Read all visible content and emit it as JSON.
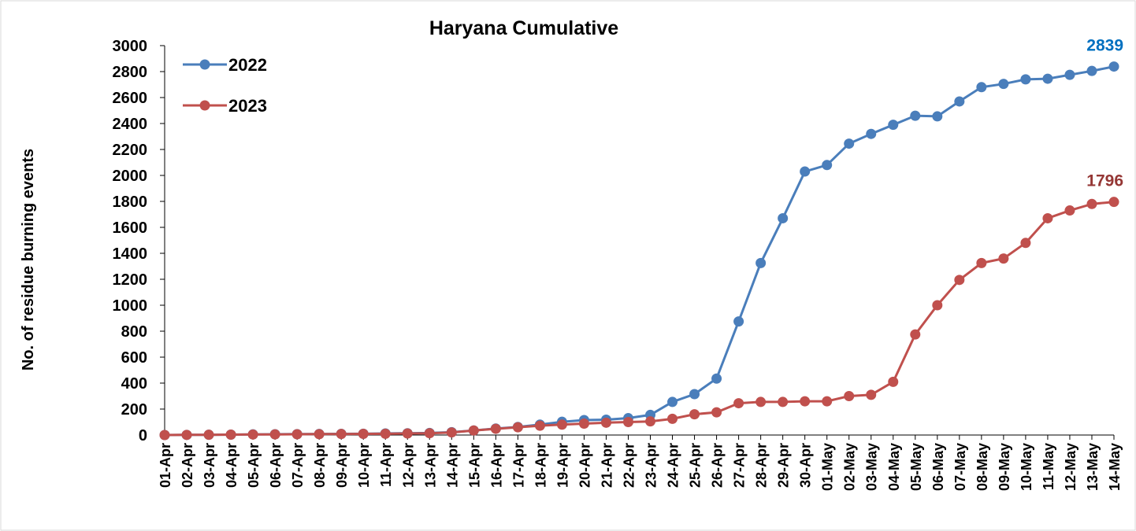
{
  "chart_data": {
    "type": "line",
    "title": "Haryana Cumulative",
    "y_label": "No. of residue burning events",
    "categories": [
      "01-Apr",
      "02-Apr",
      "03-Apr",
      "04-Apr",
      "05-Apr",
      "06-Apr",
      "07-Apr",
      "08-Apr",
      "09-Apr",
      "10-Apr",
      "11-Apr",
      "12-Apr",
      "13-Apr",
      "14-Apr",
      "15-Apr",
      "16-Apr",
      "17-Apr",
      "18-Apr",
      "19-Apr",
      "20-Apr",
      "21-Apr",
      "22-Apr",
      "23-Apr",
      "24-Apr",
      "25-Apr",
      "26-Apr",
      "27-Apr",
      "28-Apr",
      "29-Apr",
      "30-Apr",
      "01-May",
      "02-May",
      "03-May",
      "04-May",
      "05-May",
      "06-May",
      "07-May",
      "08-May",
      "09-May",
      "10-May",
      "11-May",
      "12-May",
      "13-May",
      "14-May"
    ],
    "series": [
      {
        "name": "2022",
        "color": "#4a7ebb",
        "label_color": "#0070c0",
        "values": [
          0,
          1,
          2,
          3,
          5,
          6,
          7,
          8,
          9,
          10,
          12,
          14,
          16,
          22,
          35,
          50,
          62,
          80,
          102,
          115,
          118,
          130,
          155,
          255,
          315,
          435,
          875,
          1325,
          1670,
          2030,
          2080,
          2245,
          2320,
          2390,
          2460,
          2455,
          2570,
          2680,
          2705,
          2740,
          2745,
          2775,
          2805,
          2839
        ]
      },
      {
        "name": "2023",
        "color": "#c0504d",
        "label_color": "#953735",
        "values": [
          0,
          1,
          2,
          3,
          4,
          5,
          6,
          7,
          8,
          9,
          10,
          12,
          14,
          20,
          35,
          48,
          60,
          72,
          80,
          88,
          95,
          100,
          105,
          125,
          160,
          175,
          245,
          255,
          255,
          260,
          260,
          300,
          310,
          410,
          775,
          1000,
          1195,
          1325,
          1360,
          1480,
          1670,
          1730,
          1780,
          1796
        ]
      }
    ],
    "ylim": [
      0,
      3000
    ],
    "yticks": [
      0,
      200,
      400,
      600,
      800,
      1000,
      1200,
      1400,
      1600,
      1800,
      2000,
      2200,
      2400,
      2600,
      2800,
      3000
    ],
    "grid": false,
    "legend": "upper left"
  }
}
